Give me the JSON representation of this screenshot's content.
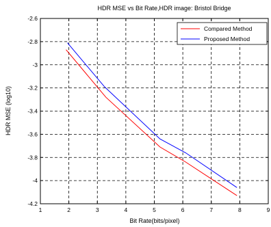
{
  "chart_data": {
    "type": "line",
    "title": "HDR MSE vs Bit Rate,HDR image: Bristol Bridge",
    "xlabel": "Bit Rate(bits/pixel)",
    "ylabel": "HDR MSE (log10)",
    "xlim": [
      1,
      9
    ],
    "ylim": [
      -4.2,
      -2.6
    ],
    "xticks": [
      1,
      2,
      3,
      4,
      5,
      6,
      7,
      8,
      9
    ],
    "yticks": [
      -2.6,
      -2.8,
      -3,
      -3.2,
      -3.4,
      -3.6,
      -3.8,
      -4,
      -4.2
    ],
    "xtick_labels": [
      "1",
      "2",
      "3",
      "4",
      "5",
      "6",
      "7",
      "8",
      "9"
    ],
    "ytick_labels": [
      "-2.6",
      "-2.8",
      "-3",
      "-3.2",
      "-3.4",
      "-3.6",
      "-3.8",
      "-4",
      "-4.2"
    ],
    "grid": "dashed",
    "legend_position": "top-right",
    "series": [
      {
        "name": "Compared Method",
        "color": "#ff0000",
        "points": [
          [
            1.9,
            -2.87
          ],
          [
            3.3,
            -3.28
          ],
          [
            5.2,
            -3.71
          ],
          [
            6.1,
            -3.84
          ],
          [
            7.9,
            -4.13
          ]
        ]
      },
      {
        "name": "Proposed Method",
        "color": "#0000ff",
        "points": [
          [
            1.95,
            -2.81
          ],
          [
            3.25,
            -3.19
          ],
          [
            5.2,
            -3.64
          ],
          [
            6.1,
            -3.76
          ],
          [
            7.9,
            -4.06
          ]
        ]
      }
    ]
  }
}
